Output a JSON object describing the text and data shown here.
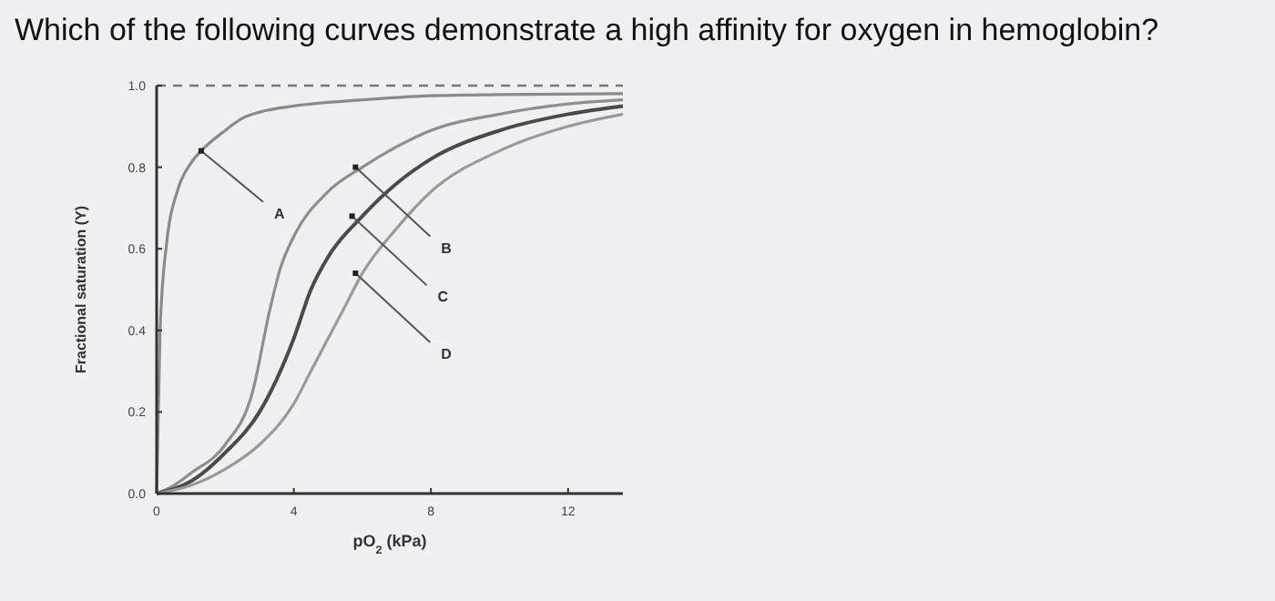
{
  "chart_data": {
    "type": "line",
    "title": "Which of the following curves demonstrate a high affinity for oxygen in hemoglobin?",
    "xlabel": "pO$_{2}$ (kPa)",
    "ylabel": "Fractional saturation (Y)",
    "xlim": [
      0,
      13.6
    ],
    "xticks": [
      0,
      4,
      8,
      12
    ],
    "ylim": [
      0,
      1
    ],
    "yticks": [
      {
        "value": 0,
        "label": "0.0"
      },
      {
        "value": 0.2,
        "label": "0.2"
      },
      {
        "value": 0.4,
        "label": "0.4"
      },
      {
        "value": 0.6,
        "label": "0.6"
      },
      {
        "value": 0.8,
        "label": "0.8"
      },
      {
        "value": 1,
        "label": "1.0"
      }
    ],
    "grid": false,
    "marker": "none",
    "line_style": "solid",
    "series": [
      {
        "color": "#8a8a8a",
        "x": [
          0,
          0.1,
          0.3,
          0.6,
          1.0,
          1.3,
          2,
          2.5,
          3,
          4,
          6,
          8,
          10,
          13.6
        ],
        "values": [
          0,
          0.4,
          0.62,
          0.74,
          0.81,
          0.84,
          0.89,
          0.92,
          0.935,
          0.95,
          0.965,
          0.975,
          0.978,
          0.98
        ]
      },
      {
        "color": "#8e8e8e",
        "x": [
          0,
          0.5,
          1,
          2,
          2.8,
          3.3,
          3.6,
          4,
          5,
          6,
          7,
          8,
          10,
          12,
          13.6
        ],
        "values": [
          0,
          0.02,
          0.05,
          0.12,
          0.25,
          0.45,
          0.55,
          0.63,
          0.74,
          0.8,
          0.85,
          0.89,
          0.93,
          0.955,
          0.965
        ]
      },
      {
        "color": "#4a4a4a",
        "x": [
          0,
          1,
          2,
          3,
          3.5,
          4,
          4.5,
          5,
          6,
          7,
          8,
          10,
          12,
          13.6
        ],
        "values": [
          0,
          0.03,
          0.1,
          0.2,
          0.28,
          0.38,
          0.5,
          0.58,
          0.68,
          0.76,
          0.82,
          0.89,
          0.93,
          0.95
        ]
      },
      {
        "color": "#9a9a9a",
        "x": [
          0,
          1,
          2,
          3,
          4,
          4.5,
          5,
          5.5,
          6,
          7,
          8,
          10,
          12,
          13.6
        ],
        "values": [
          0,
          0.02,
          0.06,
          0.12,
          0.22,
          0.3,
          0.38,
          0.46,
          0.54,
          0.65,
          0.74,
          0.84,
          0.9,
          0.93
        ]
      }
    ],
    "ref_lines": [
      {
        "axis": "y",
        "value": 1,
        "line_style": "dashed",
        "color": "#777777"
      }
    ],
    "annotations": [
      {
        "text": "A",
        "x": 1.3,
        "y": 0.84
      },
      {
        "text": "B",
        "x": 5.8,
        "y": 0.8
      },
      {
        "text": "C",
        "x": 5.7,
        "y": 0.68
      },
      {
        "text": "D",
        "x": 5.8,
        "y": 0.54
      }
    ]
  }
}
